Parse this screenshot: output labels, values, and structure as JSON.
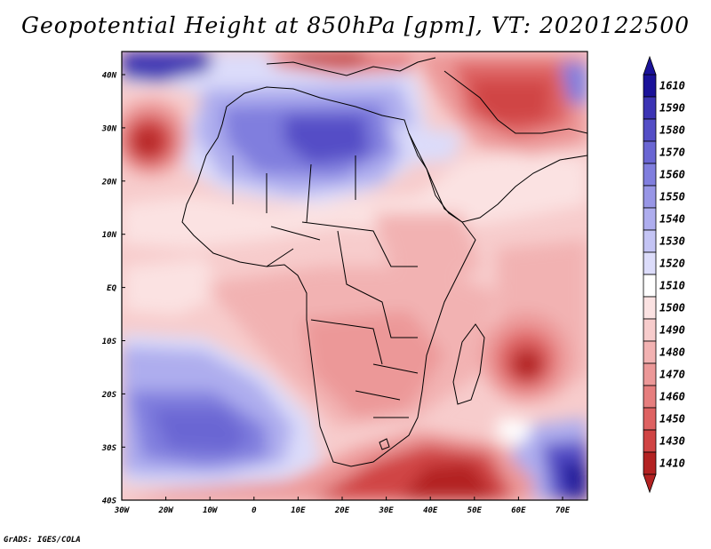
{
  "title": "Geopotential Height at 850hPa [gpm], VT: 2020122500",
  "credit": "GrADS: IGES/COLA",
  "map": {
    "lat_ticks": [
      "40N",
      "30N",
      "20N",
      "10N",
      "EQ",
      "10S",
      "20S",
      "30S",
      "40S"
    ],
    "lon_ticks": [
      "30W",
      "20W",
      "10W",
      "0",
      "10E",
      "20E",
      "30E",
      "40E",
      "50E",
      "60E",
      "70E"
    ]
  },
  "colorbar": {
    "levels": [
      {
        "label": "1610",
        "color": "#1a1299"
      },
      {
        "label": "1590",
        "color": "#3c34b4"
      },
      {
        "label": "1580",
        "color": "#544ec6"
      },
      {
        "label": "1570",
        "color": "#6a66d3"
      },
      {
        "label": "1560",
        "color": "#807ede"
      },
      {
        "label": "1550",
        "color": "#9896e6"
      },
      {
        "label": "1540",
        "color": "#aeadee"
      },
      {
        "label": "1530",
        "color": "#c4c4f4"
      },
      {
        "label": "1520",
        "color": "#dcdcfa"
      },
      {
        "label": "1510",
        "color": "#ffffff"
      },
      {
        "label": "1500",
        "color": "#fbe2e2"
      },
      {
        "label": "1490",
        "color": "#f7cccc"
      },
      {
        "label": "1480",
        "color": "#f2b2b2"
      },
      {
        "label": "1470",
        "color": "#ec9898"
      },
      {
        "label": "1460",
        "color": "#e67e7e"
      },
      {
        "label": "1450",
        "color": "#de6262"
      },
      {
        "label": "1430",
        "color": "#d04444"
      },
      {
        "label": "1410",
        "color": "#b32222"
      }
    ]
  }
}
